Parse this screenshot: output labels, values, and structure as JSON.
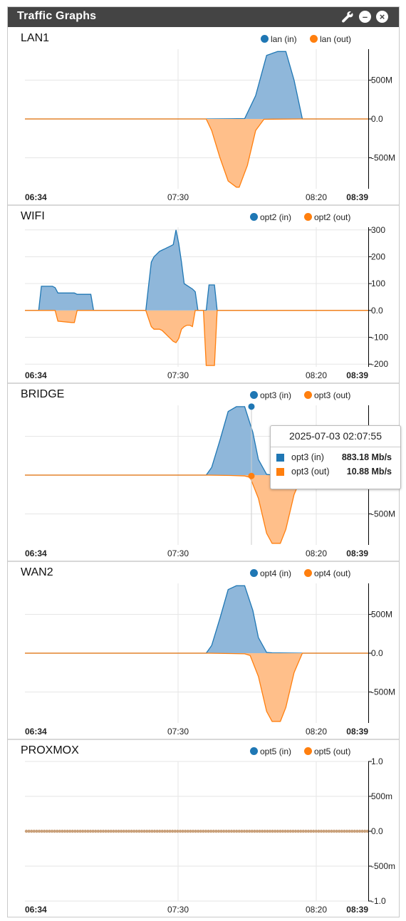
{
  "widget": {
    "title": "Traffic Graphs"
  },
  "colors": {
    "in": "#1f77b4",
    "out": "#ff7f0e",
    "in_fill": "#8fb7da",
    "out_fill": "#ffbf8a"
  },
  "x_ticks": [
    "06:34",
    "07:30",
    "08:20",
    "08:39"
  ],
  "chart_data": [
    {
      "type": "area",
      "name": "LAN1",
      "legend": [
        "lan (in)",
        "lan (out)"
      ],
      "ylim": [
        -900,
        900
      ],
      "y_ticks": [
        {
          "v": 500,
          "label": "500M"
        },
        {
          "v": 0,
          "label": "0.0"
        },
        {
          "v": -500,
          "label": "-500M"
        }
      ],
      "x_range": [
        0,
        125
      ],
      "series": [
        {
          "name": "lan (in)",
          "x": [
            0,
            66,
            75,
            80,
            84,
            88,
            92,
            95,
            98,
            101,
            125
          ],
          "values": [
            0,
            0,
            2,
            5,
            300,
            820,
            870,
            870,
            500,
            0,
            0
          ]
        },
        {
          "name": "lan (out)",
          "x": [
            0,
            66,
            68,
            71,
            74,
            77,
            78,
            81,
            84,
            87,
            90,
            101,
            125
          ],
          "values": [
            0,
            0,
            -150,
            -500,
            -800,
            -880,
            -880,
            -600,
            -150,
            -5,
            -3,
            0,
            0
          ]
        }
      ]
    },
    {
      "type": "area",
      "name": "WIFI",
      "legend": [
        "opt2 (in)",
        "opt2 (out)"
      ],
      "ylim": [
        -210,
        310
      ],
      "y_ticks": [
        {
          "v": 300,
          "label": "300"
        },
        {
          "v": 200,
          "label": "200"
        },
        {
          "v": 100,
          "label": "100"
        },
        {
          "v": 0,
          "label": "0.0"
        },
        {
          "v": -100,
          "label": "-100"
        },
        {
          "v": -200,
          "label": "-200"
        }
      ],
      "x_range": [
        0,
        125
      ],
      "series": [
        {
          "name": "opt2 (in)",
          "x": [
            0,
            5,
            6,
            10,
            11,
            12,
            18,
            19,
            24,
            25,
            44,
            45,
            46,
            47,
            48,
            49,
            50,
            51,
            52,
            53,
            54,
            55,
            56,
            57,
            58,
            61,
            62,
            63,
            64,
            65,
            66,
            67,
            68,
            69,
            70,
            125
          ],
          "values": [
            0,
            0,
            90,
            90,
            85,
            65,
            65,
            60,
            60,
            0,
            0,
            90,
            180,
            200,
            210,
            220,
            225,
            230,
            235,
            240,
            245,
            300,
            250,
            180,
            100,
            80,
            70,
            0,
            0,
            0,
            0,
            95,
            95,
            95,
            0,
            0
          ]
        },
        {
          "name": "opt2 (out)",
          "x": [
            0,
            11,
            12,
            17,
            18,
            19,
            44,
            45,
            46,
            47,
            49,
            50,
            51,
            52,
            53,
            54,
            55,
            56,
            57,
            58,
            59,
            60,
            61,
            62,
            63,
            64,
            65,
            66,
            67,
            68,
            69,
            70,
            125
          ],
          "values": [
            0,
            0,
            -40,
            -45,
            -45,
            0,
            0,
            -30,
            -60,
            -70,
            -70,
            -75,
            -85,
            -95,
            -105,
            -115,
            -120,
            -105,
            -70,
            -60,
            -55,
            -55,
            -60,
            0,
            0,
            0,
            0,
            -205,
            -205,
            -205,
            -205,
            0,
            0
          ]
        }
      ]
    },
    {
      "type": "area",
      "name": "BRIDGE",
      "legend": [
        "opt3 (in)",
        "opt3 (out)"
      ],
      "ylim": [
        -900,
        900
      ],
      "y_ticks": [
        {
          "v": 500,
          "label": "500M"
        },
        {
          "v": 0,
          "label": "0.0"
        },
        {
          "v": -500,
          "label": "-500M"
        }
      ],
      "x_range": [
        0,
        125
      ],
      "series": [
        {
          "name": "opt3 (in)",
          "x": [
            0,
            66,
            68,
            71,
            74,
            77,
            80,
            83,
            85,
            88,
            90,
            125
          ],
          "values": [
            0,
            0,
            100,
            450,
            820,
            883,
            883,
            550,
            200,
            10,
            0,
            0
          ]
        },
        {
          "name": "opt3 (out)",
          "x": [
            0,
            66,
            75,
            80,
            82,
            85,
            88,
            90,
            93,
            95,
            98,
            101,
            125
          ],
          "values": [
            0,
            0,
            -5,
            -11,
            -30,
            -300,
            -750,
            -880,
            -880,
            -700,
            -250,
            0,
            0
          ]
        }
      ],
      "tooltip": {
        "date": "2025-07-03 02:07:55",
        "rows": [
          {
            "name": "opt3 (in)",
            "value": "883.18 Mb/s"
          },
          {
            "name": "opt3 (out)",
            "value": "10.88 Mb/s"
          }
        ]
      }
    },
    {
      "type": "area",
      "name": "WAN2",
      "legend": [
        "opt4 (in)",
        "opt4 (out)"
      ],
      "ylim": [
        -900,
        900
      ],
      "y_ticks": [
        {
          "v": 500,
          "label": "500M"
        },
        {
          "v": 0,
          "label": "0.0"
        },
        {
          "v": -500,
          "label": "-500M"
        }
      ],
      "x_range": [
        0,
        125
      ],
      "series": [
        {
          "name": "opt4 (in)",
          "x": [
            0,
            66,
            68,
            71,
            74,
            77,
            80,
            83,
            85,
            88,
            90,
            101,
            125
          ],
          "values": [
            0,
            0,
            100,
            450,
            820,
            870,
            870,
            550,
            200,
            10,
            5,
            0,
            0
          ]
        },
        {
          "name": "opt4 (out)",
          "x": [
            0,
            66,
            75,
            80,
            82,
            85,
            88,
            90,
            93,
            95,
            98,
            101,
            125
          ],
          "values": [
            0,
            0,
            -5,
            -8,
            -30,
            -300,
            -750,
            -880,
            -880,
            -700,
            -250,
            0,
            0
          ]
        }
      ]
    },
    {
      "type": "area",
      "name": "PROXMOX",
      "legend": [
        "opt5 (in)",
        "opt5 (out)"
      ],
      "ylim": [
        -1,
        1
      ],
      "y_ticks": [
        {
          "v": 1,
          "label": "1.0"
        },
        {
          "v": 0.5,
          "label": "500m"
        },
        {
          "v": 0,
          "label": "0.0"
        },
        {
          "v": -0.5,
          "label": "-500m"
        },
        {
          "v": -1,
          "label": "-1.0"
        }
      ],
      "x_range": [
        0,
        125
      ],
      "series": [
        {
          "name": "opt5 (in)",
          "x": [
            0,
            125
          ],
          "values": [
            0,
            0
          ]
        },
        {
          "name": "opt5 (out)",
          "x": [
            0,
            125
          ],
          "values": [
            0,
            0
          ]
        }
      ]
    }
  ]
}
